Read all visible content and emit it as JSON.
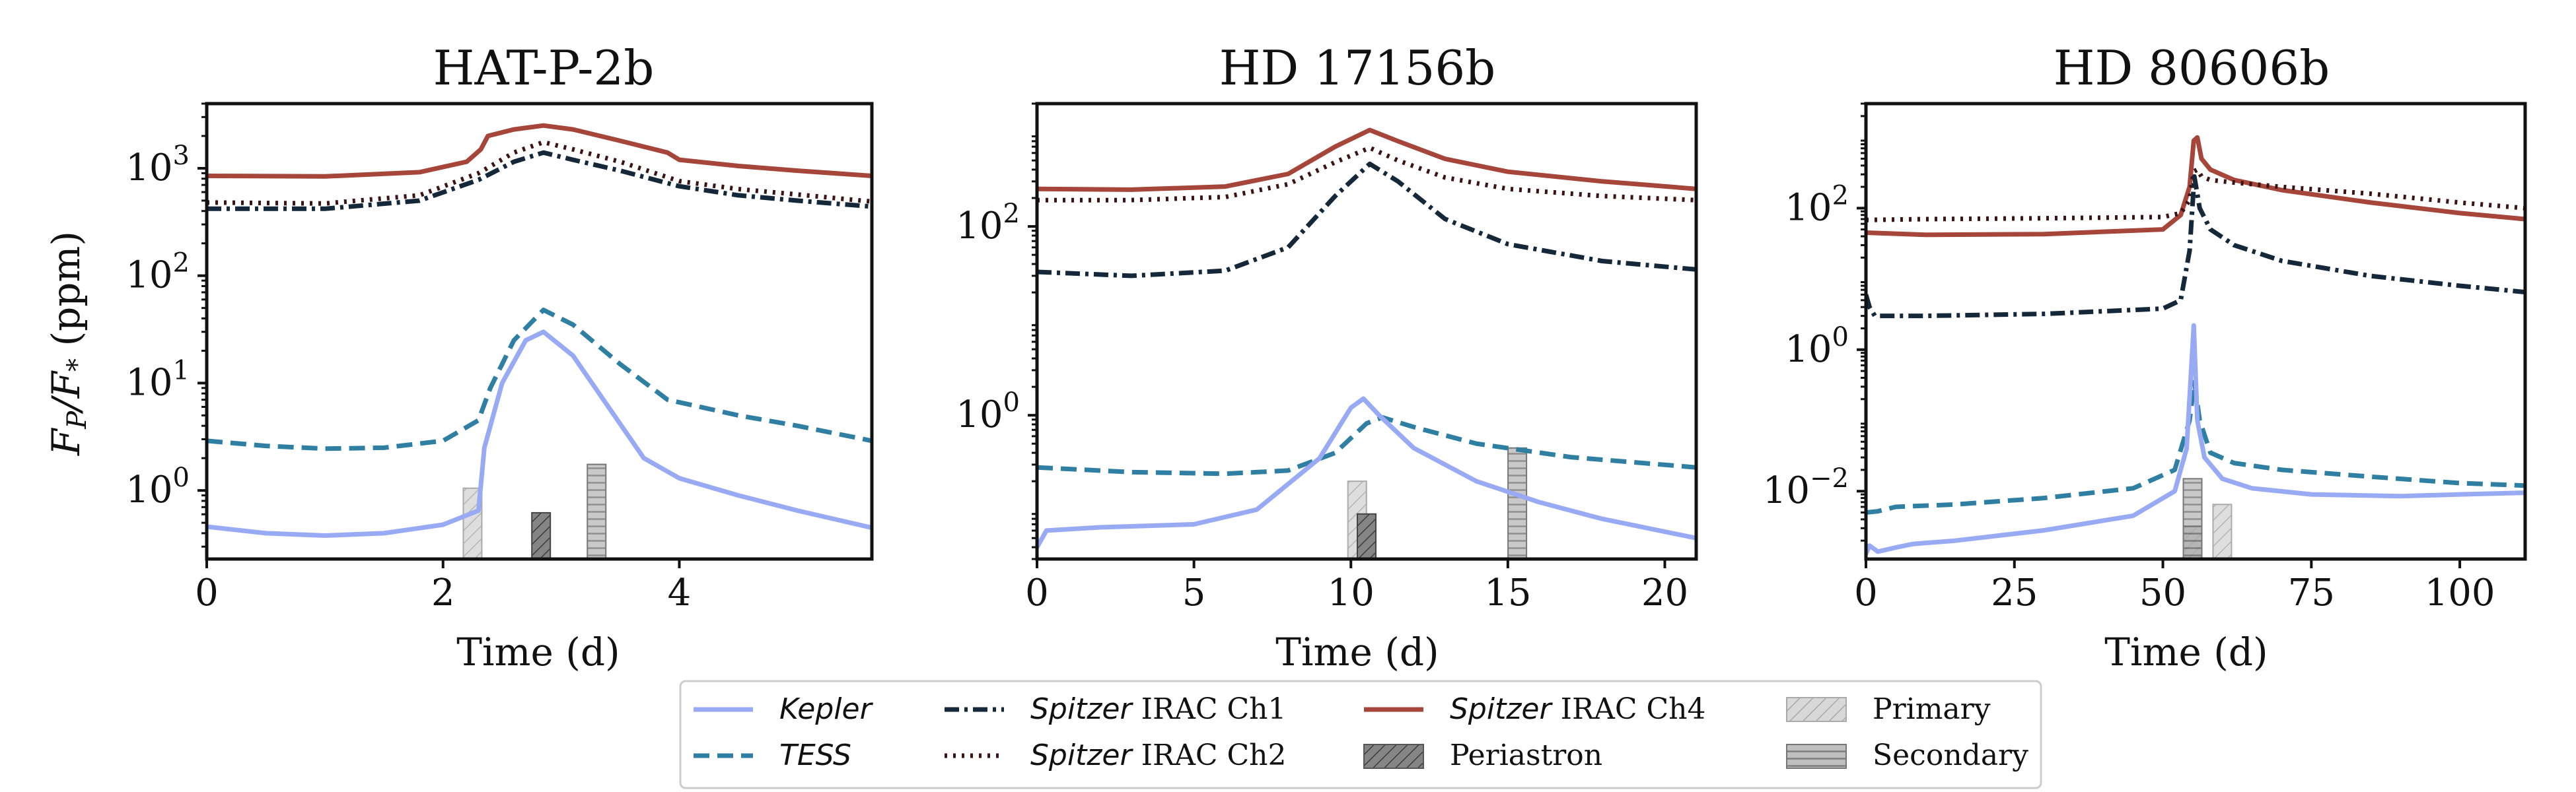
{
  "figure": {
    "y_axis_label_main": "F",
    "y_axis_label_sub": "P",
    "y_axis_label_mid": "/F",
    "y_axis_label_star": "*",
    "y_axis_label_unit": " (ppm)"
  },
  "colors": {
    "kepler": "#99aaf5",
    "tess": "#2f7fa3",
    "ch1": "#14283a",
    "ch2": "#3a1414",
    "ch4": "#a6463a",
    "primary_fill": "#d2d2d2",
    "periastron_fill": "#7a7a7a",
    "secondary_fill": "#b4b4b4"
  },
  "legend": {
    "kepler": "Kepler",
    "tess": "TESS",
    "ch1_a": "Spitzer",
    "ch1_b": " IRAC Ch1",
    "ch2_a": "Spitzer",
    "ch2_b": " IRAC Ch2",
    "ch4_a": "Spitzer",
    "ch4_b": " IRAC Ch4",
    "primary": "Primary",
    "periastron": "Periastron",
    "secondary": "Secondary"
  },
  "chart_data": [
    {
      "type": "line",
      "title": "HAT-P-2b",
      "xlabel": "Time (d)",
      "ylabel": "F_P/F_* (ppm)",
      "yscale": "log",
      "xlim": [
        0,
        5.63
      ],
      "ylim": [
        0.23,
        4000
      ],
      "xticks": [
        0,
        2,
        4
      ],
      "xtick_labels": [
        "0",
        "2",
        "4"
      ],
      "yticks": [
        1,
        10,
        100,
        1000
      ],
      "ytick_label_base": [
        "10",
        "10",
        "10",
        "10"
      ],
      "ytick_label_exp": [
        "0",
        "1",
        "2",
        "3"
      ],
      "events": [
        {
          "kind": "primary",
          "x": 2.25,
          "top": 1.05
        },
        {
          "kind": "periastron",
          "x": 2.83,
          "top": 0.62
        },
        {
          "kind": "secondary",
          "x": 3.3,
          "top": 1.75
        }
      ],
      "series": [
        {
          "name": "Spitzer IRAC Ch4",
          "key": "ch4",
          "x": [
            0,
            1,
            1.8,
            2.2,
            2.32,
            2.38,
            2.6,
            2.85,
            3.1,
            3.5,
            3.9,
            4.0,
            4.5,
            5.0,
            5.63
          ],
          "y": [
            850,
            840,
            920,
            1150,
            1500,
            2000,
            2300,
            2500,
            2300,
            1800,
            1400,
            1200,
            1050,
            950,
            850
          ]
        },
        {
          "name": "Spitzer IRAC Ch2",
          "key": "ch2",
          "x": [
            0,
            1,
            1.8,
            2.3,
            2.6,
            2.85,
            3.1,
            3.5,
            4.0,
            4.5,
            5.0,
            5.63
          ],
          "y": [
            480,
            470,
            560,
            900,
            1400,
            1750,
            1500,
            1150,
            760,
            640,
            570,
            490
          ]
        },
        {
          "name": "Spitzer IRAC Ch1",
          "key": "ch1",
          "x": [
            0,
            1,
            1.8,
            2.3,
            2.6,
            2.85,
            3.1,
            3.5,
            4.0,
            4.5,
            5.0,
            5.63
          ],
          "y": [
            420,
            420,
            500,
            780,
            1150,
            1400,
            1200,
            950,
            680,
            560,
            500,
            440
          ]
        },
        {
          "name": "TESS",
          "key": "tess",
          "x": [
            0,
            0.5,
            1,
            1.5,
            2.0,
            2.3,
            2.4,
            2.6,
            2.85,
            3.1,
            3.5,
            3.9,
            4.5,
            5.0,
            5.63
          ],
          "y": [
            2.9,
            2.6,
            2.45,
            2.5,
            2.9,
            4.5,
            9,
            25,
            48,
            35,
            15,
            7,
            5,
            4,
            2.9
          ]
        },
        {
          "name": "Kepler",
          "key": "kepler",
          "x": [
            0,
            0.5,
            1,
            1.5,
            2.0,
            2.3,
            2.35,
            2.5,
            2.7,
            2.85,
            3.1,
            3.4,
            3.7,
            4.0,
            4.5,
            5.0,
            5.63
          ],
          "y": [
            0.46,
            0.4,
            0.38,
            0.4,
            0.48,
            0.65,
            2.5,
            10,
            25,
            30,
            18,
            6,
            2.0,
            1.3,
            0.9,
            0.65,
            0.45
          ]
        }
      ]
    },
    {
      "type": "line",
      "title": "HD 17156b",
      "xlabel": "Time (d)",
      "ylabel": "",
      "yscale": "log",
      "xlim": [
        0,
        21
      ],
      "ylim": [
        0.03,
        2000
      ],
      "xticks": [
        0,
        5,
        10,
        15,
        20
      ],
      "xtick_labels": [
        "0",
        "5",
        "10",
        "15",
        "20"
      ],
      "yticks": [
        1,
        100
      ],
      "ytick_label_base": [
        "10",
        "10"
      ],
      "ytick_label_exp": [
        "0",
        "2"
      ],
      "events": [
        {
          "kind": "primary",
          "x": 10.2,
          "top": 0.2
        },
        {
          "kind": "periastron",
          "x": 10.5,
          "top": 0.09
        },
        {
          "kind": "secondary",
          "x": 15.3,
          "top": 0.45
        }
      ],
      "series": [
        {
          "name": "Spitzer IRAC Ch4",
          "key": "ch4",
          "x": [
            0,
            3,
            6,
            8,
            9.5,
            10.6,
            11.5,
            13,
            15,
            18,
            21
          ],
          "y": [
            250,
            245,
            265,
            360,
            700,
            1050,
            800,
            520,
            380,
            300,
            250
          ]
        },
        {
          "name": "Spitzer IRAC Ch2",
          "key": "ch2",
          "x": [
            0,
            3,
            6,
            8,
            9.5,
            10.6,
            11.5,
            13,
            15,
            18,
            21
          ],
          "y": [
            190,
            190,
            205,
            280,
            480,
            680,
            500,
            330,
            250,
            210,
            190
          ]
        },
        {
          "name": "Spitzer IRAC Ch1",
          "key": "ch1",
          "x": [
            0,
            3,
            6,
            8,
            9.5,
            10.6,
            11.5,
            13,
            15,
            18,
            21
          ],
          "y": [
            33,
            30,
            34,
            60,
            210,
            460,
            300,
            120,
            65,
            43,
            35
          ]
        },
        {
          "name": "TESS",
          "key": "tess",
          "x": [
            0,
            3,
            6,
            8,
            9.5,
            10.5,
            11.0,
            12,
            14,
            17,
            21
          ],
          "y": [
            0.28,
            0.25,
            0.24,
            0.26,
            0.4,
            0.82,
            0.95,
            0.75,
            0.5,
            0.36,
            0.28
          ]
        },
        {
          "name": "Kepler",
          "key": "kepler",
          "x": [
            0,
            0.3,
            2,
            5,
            7,
            9,
            10.0,
            10.4,
            10.9,
            12,
            14,
            16,
            18,
            21
          ],
          "y": [
            0.04,
            0.06,
            0.065,
            0.07,
            0.1,
            0.35,
            1.2,
            1.5,
            1.0,
            0.45,
            0.2,
            0.12,
            0.08,
            0.05
          ]
        }
      ]
    },
    {
      "type": "line",
      "title": "HD 80606b",
      "xlabel": "Time (d)",
      "ylabel": "",
      "yscale": "log",
      "xlim": [
        0,
        111
      ],
      "ylim": [
        0.0011,
        3000
      ],
      "xticks": [
        0,
        25,
        50,
        75,
        100
      ],
      "xtick_labels": [
        "0",
        "25",
        "50",
        "75",
        "100"
      ],
      "yticks": [
        0.01,
        1,
        100
      ],
      "ytick_label_base": [
        "10",
        "10",
        "10"
      ],
      "ytick_label_exp": [
        "−2",
        "0",
        "2"
      ],
      "events": [
        {
          "kind": "primary",
          "x": 60,
          "top": 0.0065
        },
        {
          "kind": "periastron",
          "x": 55,
          "top": 0.0032
        },
        {
          "kind": "secondary",
          "x": 55,
          "top": 0.015
        }
      ],
      "series": [
        {
          "name": "Spitzer IRAC Ch4",
          "key": "ch4",
          "x": [
            0,
            10,
            30,
            50,
            53,
            54.5,
            55.2,
            55.8,
            56.5,
            58,
            62,
            70,
            85,
            100,
            111
          ],
          "y": [
            45,
            42,
            43,
            50,
            80,
            200,
            900,
            1000,
            500,
            350,
            250,
            180,
            120,
            85,
            70
          ]
        },
        {
          "name": "Spitzer IRAC Ch2",
          "key": "ch2",
          "x": [
            0,
            10,
            30,
            50,
            53,
            54.5,
            55.2,
            55.8,
            56.5,
            58,
            62,
            70,
            85,
            100,
            111
          ],
          "y": [
            68,
            70,
            72,
            75,
            85,
            130,
            330,
            350,
            280,
            250,
            230,
            200,
            160,
            120,
            100
          ]
        },
        {
          "name": "Spitzer IRAC Ch1",
          "key": "ch1",
          "x": [
            0,
            0.6,
            1.5,
            10,
            30,
            50,
            53,
            54.5,
            55.3,
            56.2,
            58,
            62,
            70,
            85,
            100,
            111
          ],
          "y": [
            6,
            4,
            3.0,
            3.0,
            3.2,
            3.8,
            5,
            25,
            280,
            100,
            50,
            30,
            18,
            11,
            8,
            6.5
          ]
        },
        {
          "name": "TESS",
          "key": "tess",
          "x": [
            0,
            2,
            5,
            15,
            30,
            45,
            52,
            54.5,
            55.3,
            56.2,
            58,
            62,
            70,
            85,
            100,
            111
          ],
          "y": [
            0.005,
            0.0052,
            0.006,
            0.0065,
            0.008,
            0.011,
            0.02,
            0.1,
            0.35,
            0.1,
            0.035,
            0.025,
            0.02,
            0.016,
            0.013,
            0.012
          ]
        },
        {
          "name": "Kepler",
          "key": "kepler",
          "x": [
            0,
            0.6,
            2,
            5,
            8,
            15,
            30,
            45,
            52,
            54,
            55.2,
            55.8,
            57,
            60,
            65,
            75,
            90,
            100,
            111
          ],
          "y": [
            0.0013,
            0.0017,
            0.0014,
            0.0016,
            0.0018,
            0.002,
            0.0028,
            0.0045,
            0.01,
            0.04,
            2.2,
            0.1,
            0.03,
            0.015,
            0.011,
            0.009,
            0.0085,
            0.009,
            0.0095
          ]
        }
      ]
    }
  ]
}
